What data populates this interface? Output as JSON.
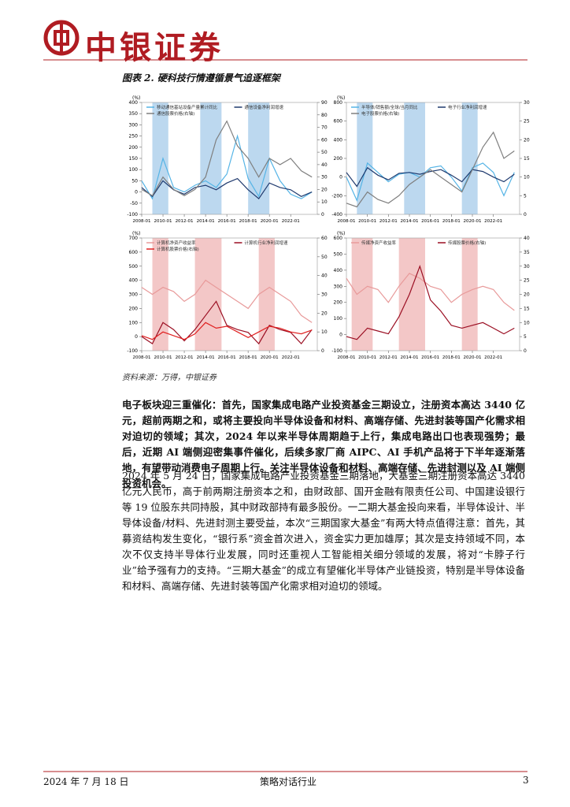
{
  "header": {
    "brand": "中银证券"
  },
  "figure": {
    "title": "图表 2. 硬科技行情遵循景气追逐框架",
    "source": "资料来源：万得，中银证券"
  },
  "chart_data": [
    {
      "type": "line",
      "yunit": "(%)",
      "x": [
        "2008-01",
        "2009-01",
        "2010-01",
        "2011-01",
        "2012-01",
        "2013-01",
        "2014-01",
        "2015-01",
        "2016-01",
        "2017-01",
        "2018-01",
        "2019-01",
        "2020-01",
        "2021-01",
        "2022-01",
        "2023-01",
        "2024-01"
      ],
      "xlim": [
        "2008-01",
        "2024-07"
      ],
      "xticks": [
        "2008-01",
        "2010-01",
        "2012-01",
        "2014-01",
        "2016-01",
        "2018-01",
        "2020-01",
        "2022-01"
      ],
      "ylim": [
        -100,
        400
      ],
      "yticks": [
        -100,
        -50,
        0,
        50,
        100,
        150,
        200,
        250,
        300,
        350,
        400
      ],
      "y2lim": [
        0,
        90
      ],
      "y2ticks": [
        0,
        10,
        20,
        30,
        40,
        50,
        60,
        70,
        80,
        90
      ],
      "shaded": [
        [
          "2009-01",
          "2010-07"
        ],
        [
          "2013-07",
          "2015-07"
        ],
        [
          "2018-01",
          "2020-01"
        ]
      ],
      "shade_color": "#bcd8ef",
      "series": [
        {
          "name": "移动通信基站设备产量累计同比",
          "color": "#55b4e6",
          "values": [
            50,
            -30,
            150,
            20,
            0,
            30,
            50,
            20,
            80,
            250,
            60,
            -20,
            150,
            50,
            -10,
            -30,
            0
          ]
        },
        {
          "name": "通信设备净利润增速",
          "color": "#1f3a6e",
          "values": [
            20,
            -20,
            50,
            10,
            -10,
            20,
            30,
            10,
            40,
            60,
            10,
            -30,
            40,
            20,
            10,
            -20,
            0
          ]
        },
        {
          "name": "通信股票价格(右轴)",
          "color": "#7f7f7f",
          "axis": "y2",
          "values": [
            20,
            15,
            30,
            20,
            15,
            20,
            30,
            60,
            75,
            55,
            45,
            30,
            45,
            40,
            45,
            35,
            30
          ]
        }
      ]
    },
    {
      "type": "line",
      "yunit": "(%)",
      "x": [
        "2008-01",
        "2009-01",
        "2010-01",
        "2011-01",
        "2012-01",
        "2013-01",
        "2014-01",
        "2015-01",
        "2016-01",
        "2017-01",
        "2018-01",
        "2019-01",
        "2020-01",
        "2021-01",
        "2022-01",
        "2023-01",
        "2024-01"
      ],
      "xlim": [
        "2008-01",
        "2024-07"
      ],
      "xticks": [
        "2008-01",
        "2010-01",
        "2012-01",
        "2014-01",
        "2016-01",
        "2018-01",
        "2020-01",
        "2022-01"
      ],
      "ylim": [
        -400,
        800
      ],
      "yticks": [
        -400,
        -200,
        0,
        200,
        400,
        600,
        800
      ],
      "y2lim": [
        0,
        30
      ],
      "y2ticks": [
        0,
        5,
        10,
        15,
        20,
        25,
        30
      ],
      "shaded": [
        [
          "2009-01",
          "2010-07"
        ],
        [
          "2013-07",
          "2015-07"
        ],
        [
          "2019-01",
          "2020-07"
        ]
      ],
      "shade_color": "#bcd8ef",
      "series": [
        {
          "name": "半导体/销售额/全球/当月同比",
          "color": "#55b4e6",
          "values": [
            0,
            -250,
            150,
            50,
            -50,
            30,
            50,
            0,
            100,
            120,
            0,
            -150,
            100,
            150,
            50,
            -200,
            50
          ]
        },
        {
          "name": "电子行业净利润增速",
          "color": "#1f3a6e",
          "values": [
            50,
            -100,
            100,
            20,
            -30,
            40,
            50,
            30,
            60,
            80,
            20,
            -50,
            80,
            60,
            0,
            -50,
            30
          ]
        },
        {
          "name": "电子股票价格(右轴)",
          "color": "#7f7f7f",
          "axis": "y2",
          "values": [
            3,
            2,
            6,
            4,
            3,
            5,
            8,
            10,
            12,
            10,
            8,
            6,
            12,
            18,
            22,
            15,
            17
          ]
        }
      ]
    },
    {
      "type": "line",
      "yunit": "(%)",
      "x": [
        "2008-01",
        "2009-01",
        "2010-01",
        "2011-01",
        "2012-01",
        "2013-01",
        "2014-01",
        "2015-01",
        "2016-01",
        "2017-01",
        "2018-01",
        "2019-01",
        "2020-01",
        "2021-01",
        "2022-01",
        "2023-01",
        "2024-01"
      ],
      "xlim": [
        "2008-01",
        "2024-07"
      ],
      "xticks": [
        "2008-01",
        "2010-01",
        "2012-01",
        "2014-01",
        "2016-01",
        "2018-01",
        "2020-01",
        "2022-01"
      ],
      "ylim": [
        -100,
        700
      ],
      "yticks": [
        -100,
        0,
        100,
        200,
        300,
        400,
        500,
        600,
        700
      ],
      "y2lim": [
        0,
        60
      ],
      "y2ticks": [
        0,
        10,
        20,
        30,
        40,
        50,
        60
      ],
      "shaded": [
        [
          "2009-01",
          "2010-07"
        ],
        [
          "2013-01",
          "2015-07"
        ],
        [
          "2019-01",
          "2020-07"
        ]
      ],
      "shade_color": "#f3c7c7",
      "series": [
        {
          "name": "计算机净资产收益率",
          "color": "#e89a9a",
          "values": [
            350,
            300,
            350,
            320,
            250,
            300,
            400,
            350,
            300,
            250,
            200,
            300,
            350,
            300,
            250,
            150,
            100
          ]
        },
        {
          "name": "计算机行业净利润增速",
          "color": "#9b0f23",
          "values": [
            0,
            -50,
            100,
            50,
            -30,
            50,
            150,
            250,
            80,
            50,
            30,
            -50,
            80,
            50,
            30,
            -50,
            50
          ]
        },
        {
          "name": "计算机股票价格(右轴)",
          "color": "#e02020",
          "axis": "y2",
          "values": [
            8,
            6,
            10,
            8,
            6,
            9,
            15,
            12,
            13,
            10,
            7,
            10,
            13,
            12,
            10,
            9,
            11
          ]
        }
      ]
    },
    {
      "type": "line",
      "yunit": "(%)",
      "x": [
        "2008-01",
        "2009-01",
        "2010-01",
        "2011-01",
        "2012-01",
        "2013-01",
        "2014-01",
        "2015-01",
        "2016-01",
        "2017-01",
        "2018-01",
        "2019-01",
        "2020-01",
        "2021-01",
        "2022-01",
        "2023-01",
        "2024-01"
      ],
      "xlim": [
        "2008-01",
        "2024-07"
      ],
      "xticks": [
        "2008-01",
        "2010-01",
        "2012-01",
        "2014-01",
        "2016-01",
        "2018-01",
        "2020-01",
        "2022-01"
      ],
      "ylim": [
        -100,
        600
      ],
      "yticks": [
        -100,
        0,
        100,
        200,
        300,
        400,
        500,
        600
      ],
      "y2lim": [
        0,
        40
      ],
      "y2ticks": [
        0,
        5,
        10,
        15,
        20,
        25,
        30,
        35,
        40
      ],
      "shaded": [
        [
          "2008-07",
          "2010-07"
        ],
        [
          "2013-01",
          "2015-07"
        ],
        [
          "2019-01",
          "2020-07"
        ]
      ],
      "shade_color": "#f3c7c7",
      "series": [
        {
          "name": "传媒净资产收益率",
          "color": "#e89a9a",
          "values": [
            350,
            250,
            300,
            280,
            200,
            300,
            380,
            350,
            300,
            280,
            200,
            250,
            280,
            300,
            280,
            200,
            150
          ]
        },
        {
          "name": "传媒股票价格(右轴)",
          "color": "#9b0f23",
          "axis": "y2",
          "values": [
            5,
            4,
            8,
            7,
            6,
            12,
            20,
            30,
            18,
            14,
            9,
            8,
            9,
            10,
            8,
            6,
            8
          ]
        }
      ]
    }
  ],
  "body": {
    "lead": "电子板块迎三重催化：首先，国家集成电路产业投资基金三期设立，注册资本高达 3440 亿元，超前两期之和，或将主要投向半导体设备和材料、高端存储、先进封装等国产化需求相对迫切的领域；其次，2024 年以来半导体周期趋于上行，集成电路出口也表现强势；最后，近期 AI 端侧迎密集事件催化，后续多家厂商 AIPC、AI 手机产品将于下半年逐渐落地，有望带动消费电子周期上行。关注半导体设备和材料、高端存储、先进封测以及 AI 端侧投资机会。",
    "paragraph": "2024 年 5 月 24 日，国家集成电路产业投资基金三期落地，大基金三期注册资本高达 3440 亿元人民币，高于前两期注册资本之和，由财政部、国开金融有限责任公司、中国建设银行等 19 位股东共同持股，其中财政部持有最多股份。一二期大基金投向来看，半导体设计、半导体设备/材料、先进封测主要受益，本次“三期国家大基金”有两大特点值得注意：首先，其募资结构发生变化，“银行系”资金首次进入，资金实力更加雄厚；其次是支持领域不同，本次不仅支持半导体行业发展，同时还重视人工智能相关细分领域的发展，将对“卡脖子行业”给予强有力的支持。“三期大基金”的成立有望催化半导体产业链投资，特别是半导体设备和材料、高端存储、先进封装等国产化需求相对迫切的领域。"
  },
  "footer": {
    "date": "2024 年 7 月 18 日",
    "section": "策略对话行业",
    "page": "3"
  }
}
